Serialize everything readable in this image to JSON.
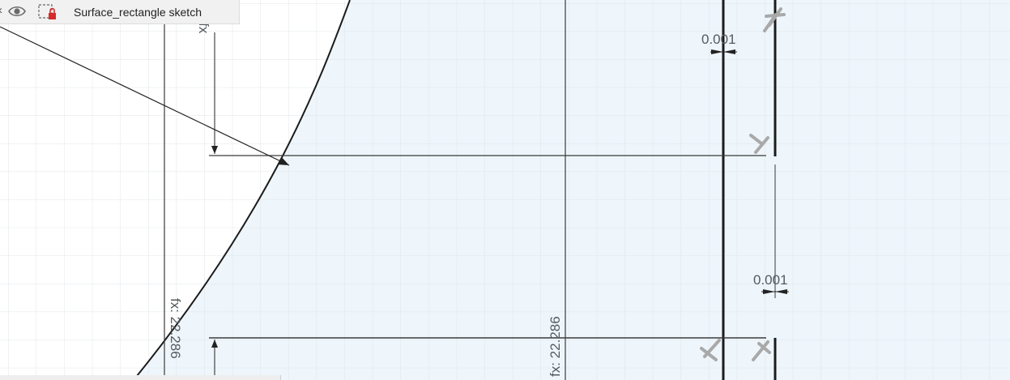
{
  "browser_node": {
    "name": "Surface_rectangle sketch",
    "icons": [
      "visibility-eye-icon",
      "sketch-locked-icon"
    ]
  },
  "dimensions": {
    "top_gap": "0.001",
    "middle_gap": "0.001",
    "vertical_left": "fx: 22.286",
    "vertical_center": "fx: 22.286",
    "top_vertical_partial": "fx"
  },
  "colors": {
    "profile_fill": "#eef6fc",
    "grid": "#dfe6ea",
    "sketch_line": "#1c1c1c",
    "dimension": "#3a3a3a",
    "constraint_glyph": "#a9a9a9"
  }
}
